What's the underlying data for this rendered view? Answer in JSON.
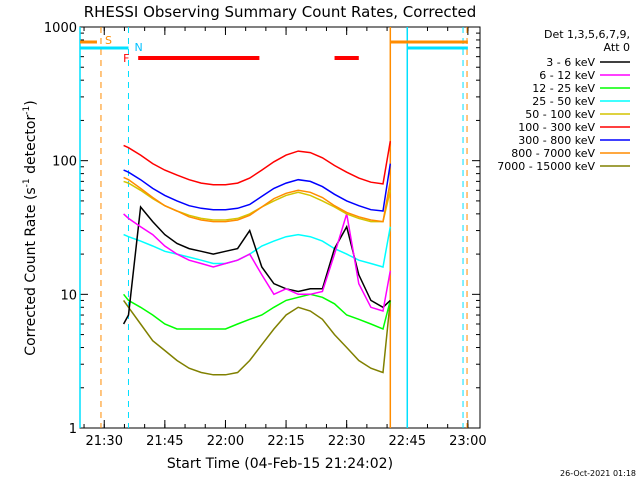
{
  "chart_data": {
    "type": "line",
    "title": "RHESSI Observing Summary Count Rates, Corrected",
    "xlabel": "Start Time (04-Feb-15 21:24:02)",
    "ylabel_main": "Corrected Count Rate (s",
    "ylabel_sup1": "-1",
    "ylabel_mid": " detector",
    "ylabel_sup2": "-1",
    "ylabel_end": ")",
    "yscale": "log",
    "ylim": [
      1,
      1000
    ],
    "xlim_minutes": [
      21.4,
      23.05
    ],
    "x_unit": "hours (decimal)",
    "yticks": [
      {
        "value": 1,
        "label": "1"
      },
      {
        "value": 10,
        "label": "10"
      },
      {
        "value": 100,
        "label": "100"
      },
      {
        "value": 1000,
        "label": "1000"
      }
    ],
    "xticks": [
      {
        "value": 21.5,
        "label": "21:30"
      },
      {
        "value": 21.75,
        "label": "21:45"
      },
      {
        "value": 22.0,
        "label": "22:00"
      },
      {
        "value": 22.25,
        "label": "22:15"
      },
      {
        "value": 22.5,
        "label": "22:30"
      },
      {
        "value": 22.75,
        "label": "22:45"
      },
      {
        "value": 23.0,
        "label": "23:00"
      }
    ],
    "legend_header": [
      "Det 1,3,5,6,7,9,",
      "Att 0"
    ],
    "legend_position": "right",
    "series": [
      {
        "name": "3 - 6 keV",
        "color": "#000000",
        "points": [
          [
            21.58,
            6
          ],
          [
            21.6,
            7
          ],
          [
            21.65,
            45
          ],
          [
            21.7,
            35
          ],
          [
            21.75,
            28
          ],
          [
            21.8,
            24
          ],
          [
            21.85,
            22
          ],
          [
            21.9,
            21
          ],
          [
            21.95,
            20
          ],
          [
            22.0,
            21
          ],
          [
            22.05,
            22
          ],
          [
            22.1,
            30
          ],
          [
            22.15,
            16
          ],
          [
            22.2,
            12
          ],
          [
            22.25,
            11
          ],
          [
            22.3,
            10.5
          ],
          [
            22.35,
            11
          ],
          [
            22.4,
            11
          ],
          [
            22.45,
            22
          ],
          [
            22.5,
            32
          ],
          [
            22.55,
            14
          ],
          [
            22.6,
            9
          ],
          [
            22.65,
            8
          ],
          [
            22.68,
            9
          ]
        ]
      },
      {
        "name": "6 - 12 keV",
        "color": "#ff00ff",
        "points": [
          [
            21.58,
            40
          ],
          [
            21.6,
            37
          ],
          [
            21.65,
            32
          ],
          [
            21.7,
            28
          ],
          [
            21.75,
            23
          ],
          [
            21.8,
            20
          ],
          [
            21.85,
            18
          ],
          [
            21.9,
            17
          ],
          [
            21.95,
            16
          ],
          [
            22.0,
            17
          ],
          [
            22.05,
            18
          ],
          [
            22.1,
            20
          ],
          [
            22.15,
            14
          ],
          [
            22.2,
            10
          ],
          [
            22.25,
            11
          ],
          [
            22.3,
            10
          ],
          [
            22.35,
            10
          ],
          [
            22.4,
            10.5
          ],
          [
            22.45,
            20
          ],
          [
            22.5,
            40
          ],
          [
            22.55,
            12
          ],
          [
            22.6,
            8
          ],
          [
            22.65,
            7.5
          ],
          [
            22.68,
            15
          ]
        ]
      },
      {
        "name": "12 - 25 keV",
        "color": "#00ff00",
        "points": [
          [
            21.58,
            10
          ],
          [
            21.6,
            9
          ],
          [
            21.65,
            8
          ],
          [
            21.7,
            7
          ],
          [
            21.75,
            6
          ],
          [
            21.8,
            5.5
          ],
          [
            21.85,
            5.5
          ],
          [
            21.9,
            5.5
          ],
          [
            21.95,
            5.5
          ],
          [
            22.0,
            5.5
          ],
          [
            22.05,
            6
          ],
          [
            22.1,
            6.5
          ],
          [
            22.15,
            7
          ],
          [
            22.2,
            8
          ],
          [
            22.25,
            9
          ],
          [
            22.3,
            9.5
          ],
          [
            22.35,
            10
          ],
          [
            22.4,
            9.5
          ],
          [
            22.45,
            8.5
          ],
          [
            22.5,
            7
          ],
          [
            22.55,
            6.5
          ],
          [
            22.6,
            6
          ],
          [
            22.65,
            5.5
          ],
          [
            22.68,
            9
          ]
        ]
      },
      {
        "name": "25 - 50 keV",
        "color": "#00ffff",
        "points": [
          [
            21.58,
            28
          ],
          [
            21.6,
            27
          ],
          [
            21.65,
            25
          ],
          [
            21.7,
            23
          ],
          [
            21.75,
            21
          ],
          [
            21.8,
            20
          ],
          [
            21.85,
            19
          ],
          [
            21.9,
            18
          ],
          [
            21.95,
            17
          ],
          [
            22.0,
            17
          ],
          [
            22.05,
            18
          ],
          [
            22.1,
            20
          ],
          [
            22.15,
            23
          ],
          [
            22.2,
            25
          ],
          [
            22.25,
            27
          ],
          [
            22.3,
            28
          ],
          [
            22.35,
            27
          ],
          [
            22.4,
            25
          ],
          [
            22.45,
            22
          ],
          [
            22.5,
            20
          ],
          [
            22.55,
            18
          ],
          [
            22.6,
            17
          ],
          [
            22.65,
            16
          ],
          [
            22.68,
            32
          ]
        ]
      },
      {
        "name": "50 - 100 keV",
        "color": "#d4c400",
        "points": [
          [
            21.58,
            70
          ],
          [
            21.6,
            68
          ],
          [
            21.65,
            60
          ],
          [
            21.7,
            52
          ],
          [
            21.75,
            46
          ],
          [
            21.8,
            42
          ],
          [
            21.85,
            39
          ],
          [
            21.9,
            37
          ],
          [
            21.95,
            36
          ],
          [
            22.0,
            36
          ],
          [
            22.05,
            37
          ],
          [
            22.1,
            40
          ],
          [
            22.15,
            45
          ],
          [
            22.2,
            50
          ],
          [
            22.25,
            55
          ],
          [
            22.3,
            58
          ],
          [
            22.35,
            55
          ],
          [
            22.4,
            50
          ],
          [
            22.45,
            45
          ],
          [
            22.5,
            40
          ],
          [
            22.55,
            37
          ],
          [
            22.6,
            35
          ],
          [
            22.65,
            35
          ],
          [
            22.68,
            60
          ]
        ]
      },
      {
        "name": "100 - 300 keV",
        "color": "#ff0000",
        "points": [
          [
            21.58,
            130
          ],
          [
            21.6,
            125
          ],
          [
            21.65,
            110
          ],
          [
            21.7,
            95
          ],
          [
            21.75,
            85
          ],
          [
            21.8,
            78
          ],
          [
            21.85,
            72
          ],
          [
            21.9,
            68
          ],
          [
            21.95,
            66
          ],
          [
            22.0,
            66
          ],
          [
            22.05,
            68
          ],
          [
            22.1,
            74
          ],
          [
            22.15,
            85
          ],
          [
            22.2,
            98
          ],
          [
            22.25,
            110
          ],
          [
            22.3,
            118
          ],
          [
            22.35,
            115
          ],
          [
            22.4,
            105
          ],
          [
            22.45,
            92
          ],
          [
            22.5,
            82
          ],
          [
            22.55,
            74
          ],
          [
            22.6,
            69
          ],
          [
            22.65,
            67
          ],
          [
            22.68,
            140
          ]
        ]
      },
      {
        "name": "300 - 800 keV",
        "color": "#0000ff",
        "points": [
          [
            21.58,
            85
          ],
          [
            21.6,
            82
          ],
          [
            21.65,
            72
          ],
          [
            21.7,
            62
          ],
          [
            21.75,
            55
          ],
          [
            21.8,
            50
          ],
          [
            21.85,
            46
          ],
          [
            21.9,
            44
          ],
          [
            21.95,
            43
          ],
          [
            22.0,
            43
          ],
          [
            22.05,
            44
          ],
          [
            22.1,
            47
          ],
          [
            22.15,
            54
          ],
          [
            22.2,
            62
          ],
          [
            22.25,
            68
          ],
          [
            22.3,
            72
          ],
          [
            22.35,
            70
          ],
          [
            22.4,
            64
          ],
          [
            22.45,
            56
          ],
          [
            22.5,
            50
          ],
          [
            22.55,
            46
          ],
          [
            22.6,
            43
          ],
          [
            22.65,
            42
          ],
          [
            22.68,
            95
          ]
        ]
      },
      {
        "name": "800 - 7000 keV",
        "color": "#ff8c00",
        "points": [
          [
            21.58,
            75
          ],
          [
            21.6,
            72
          ],
          [
            21.65,
            62
          ],
          [
            21.7,
            53
          ],
          [
            21.75,
            46
          ],
          [
            21.8,
            42
          ],
          [
            21.85,
            38
          ],
          [
            21.9,
            36
          ],
          [
            21.95,
            35
          ],
          [
            22.0,
            35
          ],
          [
            22.05,
            36
          ],
          [
            22.1,
            39
          ],
          [
            22.15,
            45
          ],
          [
            22.2,
            52
          ],
          [
            22.25,
            57
          ],
          [
            22.3,
            60
          ],
          [
            22.35,
            58
          ],
          [
            22.4,
            53
          ],
          [
            22.45,
            46
          ],
          [
            22.5,
            41
          ],
          [
            22.55,
            38
          ],
          [
            22.6,
            36
          ],
          [
            22.65,
            35
          ],
          [
            22.68,
            70
          ]
        ]
      },
      {
        "name": "7000 - 15000 keV",
        "color": "#808000",
        "points": [
          [
            21.58,
            9
          ],
          [
            21.6,
            8
          ],
          [
            21.65,
            6
          ],
          [
            21.7,
            4.5
          ],
          [
            21.75,
            3.8
          ],
          [
            21.8,
            3.2
          ],
          [
            21.85,
            2.8
          ],
          [
            21.9,
            2.6
          ],
          [
            21.95,
            2.5
          ],
          [
            22.0,
            2.5
          ],
          [
            22.05,
            2.6
          ],
          [
            22.1,
            3.2
          ],
          [
            22.15,
            4.2
          ],
          [
            22.2,
            5.5
          ],
          [
            22.25,
            7
          ],
          [
            22.3,
            8
          ],
          [
            22.35,
            7.5
          ],
          [
            22.4,
            6.5
          ],
          [
            22.45,
            5
          ],
          [
            22.5,
            4
          ],
          [
            22.55,
            3.2
          ],
          [
            22.6,
            2.8
          ],
          [
            22.65,
            2.6
          ],
          [
            22.68,
            9
          ]
        ]
      }
    ],
    "annotations": {
      "S_label": "S",
      "N_label": "N",
      "F_label": "F",
      "flare_bars": [
        [
          21.64,
          22.14
        ],
        [
          22.45,
          22.55
        ]
      ],
      "saa_segments": [
        [
          21.4,
          21.47
        ],
        [
          22.68,
          23.0
        ]
      ],
      "night_segments": [
        [
          21.4,
          21.6
        ],
        [
          22.75,
          23.0
        ]
      ],
      "vlines_orange_dash": [
        21.47,
        22.98
      ],
      "vlines_cyan_dash": [
        21.6,
        22.98
      ],
      "vlines_orange_solid": [
        22.68
      ],
      "vlines_cyan_solid": [
        21.4,
        22.75
      ]
    },
    "footer_date": "26-Oct-2021 01:18"
  }
}
